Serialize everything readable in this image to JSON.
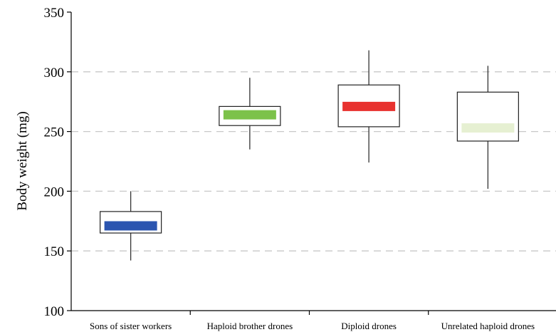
{
  "chart_data": {
    "type": "box",
    "title": "",
    "xlabel": "",
    "ylabel": "Body weight (mg)",
    "ylim": [
      100,
      350
    ],
    "yticks": [
      100,
      150,
      200,
      250,
      300,
      350
    ],
    "grid": "horizontal-dashed",
    "categories": [
      "Sons of sister workers",
      "Haploid brother drones",
      "Diploid drones",
      "Unrelated haploid drones"
    ],
    "boxes": [
      {
        "category": "Sons of sister workers",
        "min": 142,
        "q1": 165,
        "median": 171,
        "q3": 183,
        "max": 200,
        "color": "#2b55b0"
      },
      {
        "category": "Haploid brother drones",
        "min": 235,
        "q1": 255,
        "median": 264,
        "q3": 271,
        "max": 295,
        "color": "#7cc24a"
      },
      {
        "category": "Diploid drones",
        "min": 224,
        "q1": 254,
        "median": 271,
        "q3": 289,
        "max": 318,
        "color": "#e8322f"
      },
      {
        "category": "Unrelated haploid drones",
        "min": 202,
        "q1": 242,
        "median": 253,
        "q3": 283,
        "max": 305,
        "color": "#e6f0d2"
      }
    ]
  }
}
